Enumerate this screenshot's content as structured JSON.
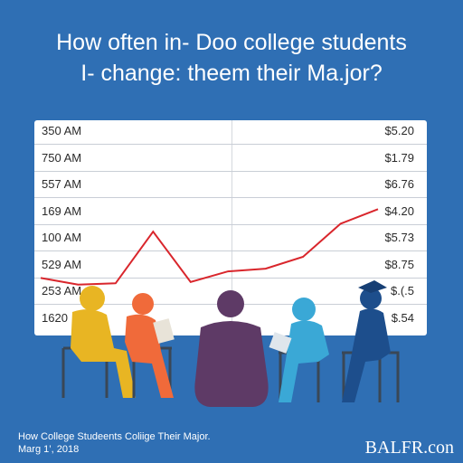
{
  "title_lines": [
    "How often in- Doo college students",
    "I- change: theem their Ma.jor?"
  ],
  "chart_data": {
    "type": "line",
    "rows": [
      {
        "left": "350 AM",
        "right": "$5.20"
      },
      {
        "left": "750 AM",
        "right": "$1.79"
      },
      {
        "left": "557 AM",
        "right": "$6.76"
      },
      {
        "left": "169 AM",
        "right": "$4.20"
      },
      {
        "left": "100 AM",
        "right": "$5.73"
      },
      {
        "left": "529 AM",
        "right": "$8.75"
      },
      {
        "left": "253 AM",
        "right": "$.(.5"
      },
      {
        "left": "1620",
        "right": "$.54"
      }
    ],
    "series": [
      {
        "values": [
          1,
          0.5,
          0.6,
          4.5,
          0.7,
          1.5,
          1.7,
          2.6,
          5.1,
          6.2
        ]
      }
    ],
    "x": [
      0,
      1,
      2,
      3,
      4,
      5,
      6,
      7,
      8,
      9
    ],
    "ylim": [
      0,
      8
    ],
    "line_color": "#d9262c"
  },
  "footer": {
    "caption_line1": "How College Studeents Coliige Their Major.",
    "caption_line2": "Marg 1’, 2018",
    "brand": "BALFR.con"
  },
  "colors": {
    "background": "#2f6fb4",
    "figure_yellow": "#e8b523",
    "figure_orange": "#f06a3a",
    "figure_purple": "#5e3a66",
    "figure_teal": "#3aa8d6",
    "figure_navy": "#1d4e8c"
  }
}
